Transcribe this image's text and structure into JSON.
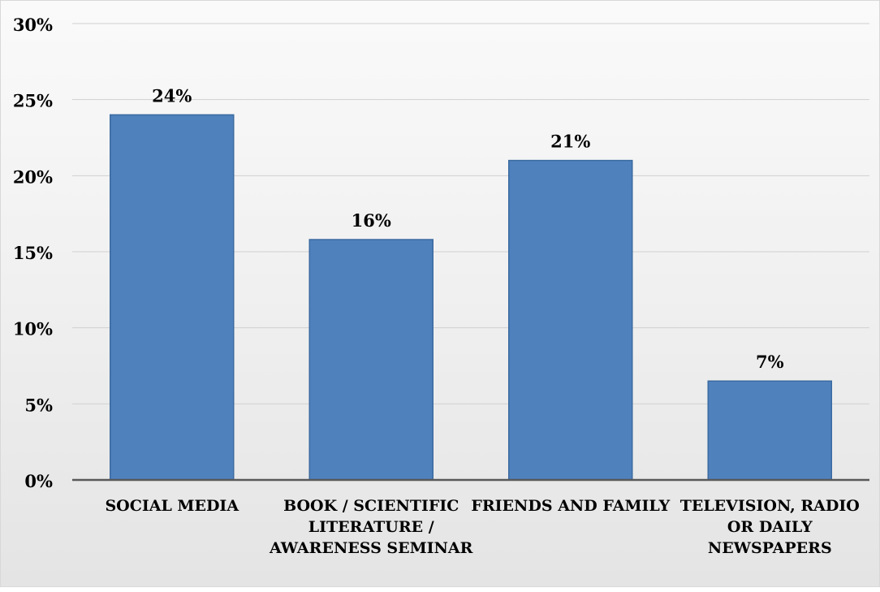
{
  "chart_data": {
    "type": "bar",
    "title": "",
    "xlabel": "",
    "ylabel": "",
    "categories": [
      "SOCIAL MEDIA",
      "BOOK / SCIENTIFIC LITERATURE / AWARENESS SEMINAR",
      "FRIENDS AND FAMILY",
      "TELEVISION, RADIO OR DAILY NEWSPAPERS"
    ],
    "category_label_lines": [
      [
        "SOCIAL MEDIA"
      ],
      [
        "BOOK / SCIENTIFIC",
        "LITERATURE /",
        "AWARENESS SEMINAR"
      ],
      [
        "FRIENDS AND FAMILY"
      ],
      [
        "TELEVISION, RADIO",
        "OR DAILY",
        "NEWSPAPERS"
      ]
    ],
    "values": [
      24,
      15.8,
      21,
      6.5
    ],
    "data_labels": [
      "24%",
      "16%",
      "21%",
      "7%"
    ],
    "ylim": [
      0,
      30
    ],
    "yticks": [
      0,
      5,
      10,
      15,
      20,
      25,
      30
    ],
    "ytick_labels": [
      "0%",
      "5%",
      "10%",
      "15%",
      "20%",
      "25%",
      "30%"
    ],
    "grid": true,
    "legend": "none",
    "bar_color": "#4f81bd",
    "bar_edge_color": "#3b6aa0"
  }
}
